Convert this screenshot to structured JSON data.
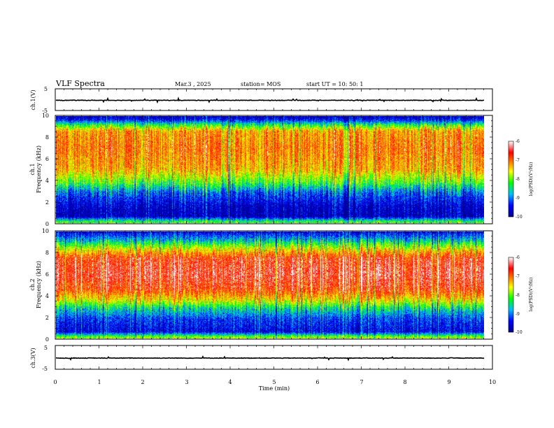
{
  "header": {
    "title": "VLF Spectra",
    "date": "Mar.3 , 2025",
    "station": "station= MOS",
    "start": "start UT = 10: 50: 1"
  },
  "chart_data": [
    {
      "type": "line",
      "panel": "ch1-waveform",
      "ylabel": "ch.1(V)",
      "ylim": [
        -5,
        5
      ],
      "y_ticks": [
        "5",
        "-5"
      ],
      "xlim": [
        0,
        10
      ],
      "trace_level_v": -0.3
    },
    {
      "type": "heatmap",
      "panel": "ch1-spectrogram",
      "ylabel": "ch.1\nFrequency (kHz)",
      "ylabel_lines": [
        "ch.1",
        "Frequency (kHz)"
      ],
      "ylim": [
        0,
        10
      ],
      "y_ticks": [
        "0",
        "2",
        "4",
        "6",
        "8",
        "10"
      ],
      "xlim": [
        0,
        10
      ],
      "data_end_min": 9.8,
      "colorbar": {
        "label": "log(PSD)(V²/Hz)",
        "range": [
          -10,
          -6
        ],
        "ticks": [
          "-6",
          "-7",
          "-8",
          "-9",
          "-10"
        ]
      },
      "band_profile_log_psd": [
        {
          "freq_khz": 0.1,
          "value": -8.3
        },
        {
          "freq_khz": 0.6,
          "value": -9.8
        },
        {
          "freq_khz": 1.5,
          "value": -9.7
        },
        {
          "freq_khz": 2.8,
          "value": -9.2
        },
        {
          "freq_khz": 3.8,
          "value": -8.2
        },
        {
          "freq_khz": 5.0,
          "value": -7.4
        },
        {
          "freq_khz": 7.0,
          "value": -7.1
        },
        {
          "freq_khz": 8.6,
          "value": -7.3
        },
        {
          "freq_khz": 9.2,
          "value": -8.4
        },
        {
          "freq_khz": 9.7,
          "value": -9.5
        },
        {
          "freq_khz": 10.0,
          "value": -9.8
        }
      ]
    },
    {
      "type": "heatmap",
      "panel": "ch2-spectrogram",
      "ylabel": "ch.2\nFrequency (kHz)",
      "ylabel_lines": [
        "ch.2",
        "Frequency (kHz)"
      ],
      "ylim": [
        0,
        10
      ],
      "y_ticks": [
        "0",
        "2",
        "4",
        "6",
        "8",
        "10"
      ],
      "xlim": [
        0,
        10
      ],
      "data_end_min": 9.8,
      "colorbar": {
        "label": "log(PSD)(V²/Hz)",
        "range": [
          -10,
          -6
        ],
        "ticks": [
          "-6",
          "-7",
          "-8",
          "-9",
          "-10"
        ]
      },
      "band_profile_log_psd": [
        {
          "freq_khz": 0.1,
          "value": -8.0
        },
        {
          "freq_khz": 0.6,
          "value": -9.6
        },
        {
          "freq_khz": 1.8,
          "value": -9.3
        },
        {
          "freq_khz": 2.8,
          "value": -8.6
        },
        {
          "freq_khz": 3.6,
          "value": -7.6
        },
        {
          "freq_khz": 4.6,
          "value": -6.8
        },
        {
          "freq_khz": 6.0,
          "value": -6.5
        },
        {
          "freq_khz": 7.5,
          "value": -6.7
        },
        {
          "freq_khz": 8.4,
          "value": -7.7
        },
        {
          "freq_khz": 9.2,
          "value": -8.8
        },
        {
          "freq_khz": 10.0,
          "value": -9.6
        }
      ]
    },
    {
      "type": "line",
      "panel": "ch3-waveform",
      "ylabel": "ch.3(V)",
      "ylim": [
        -5,
        5
      ],
      "y_ticks": [
        "5",
        "-5"
      ],
      "xlim": [
        0,
        10
      ],
      "trace_level_v": -0.3
    }
  ],
  "x_axis": {
    "label": "Time (min)",
    "ticks": [
      "0",
      "1",
      "2",
      "3",
      "4",
      "5",
      "6",
      "7",
      "8",
      "9",
      "10"
    ]
  },
  "colors": {
    "colormap": [
      "#00008b",
      "#0000ff",
      "#00bfff",
      "#00ff00",
      "#ffff00",
      "#ff8000",
      "#ff0000",
      "#ffffff"
    ],
    "trace": "#000000"
  }
}
